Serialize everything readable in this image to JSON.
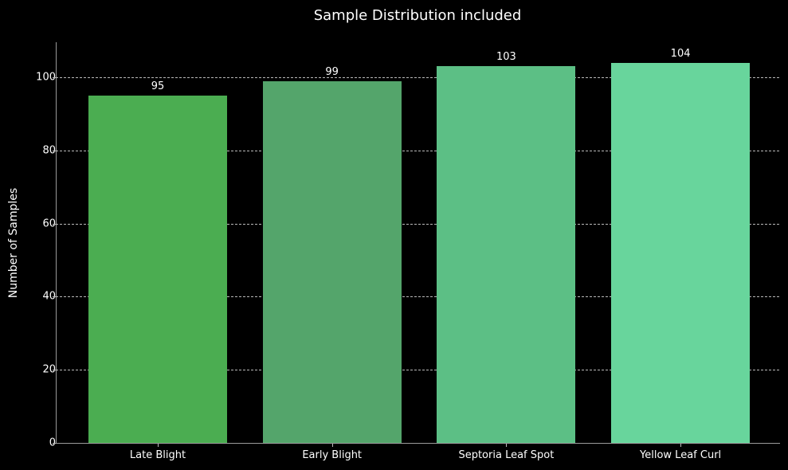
{
  "figure": {
    "background_color": "#000000",
    "text_color": "#ffffff",
    "spine_color": "#9a9a9a",
    "gridline_color": "#b9b9b9"
  },
  "chart_data": {
    "type": "bar",
    "title": "Sample Distribution included",
    "xlabel": "",
    "ylabel": "Number of Samples",
    "categories": [
      "Late Blight",
      "Early Blight",
      "Septoria Leaf Spot",
      "Yellow Leaf Curl"
    ],
    "values": [
      95,
      99,
      103,
      104
    ],
    "bar_labels": [
      "95",
      "99",
      "103",
      "104"
    ],
    "bar_colors": [
      "#4BAD51",
      "#54A56B",
      "#5CBF85",
      "#68D59C"
    ],
    "yticks": [
      0,
      20,
      40,
      60,
      80,
      100
    ],
    "ylim": [
      0,
      109.6
    ],
    "grid": "horizontal-dashed-behind-bars",
    "legend": "none"
  }
}
